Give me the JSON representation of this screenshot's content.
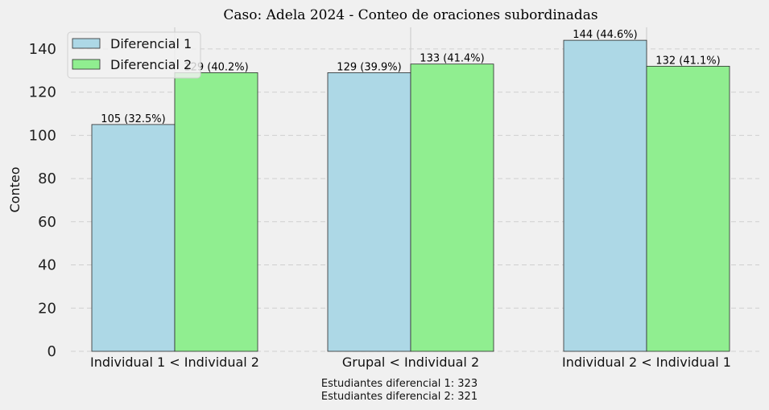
{
  "chart_data": {
    "type": "bar",
    "title": "Caso: Adela 2024 - Conteo de oraciones subordinadas",
    "xlabel": "",
    "ylabel": "Conteo",
    "ylim": [
      0,
      150
    ],
    "yticks": [
      0,
      20,
      40,
      60,
      80,
      100,
      120,
      140
    ],
    "grid": true,
    "legend_position": "top-left",
    "categories": [
      "Individual 1 < Individual 2",
      "Grupal < Individual 2",
      "Individual 2 < Individual 1"
    ],
    "series": [
      {
        "name": "Diferencial 1",
        "color": "#add8e6",
        "values": [
          105,
          129,
          144
        ],
        "labels": [
          "105 (32.5%)",
          "129 (39.9%)",
          "144 (44.6%)"
        ]
      },
      {
        "name": "Diferencial 2",
        "color": "#90ee90",
        "values": [
          129,
          133,
          132
        ],
        "labels": [
          "129 (40.2%)",
          "133 (41.4%)",
          "132 (41.1%)"
        ]
      }
    ],
    "annotations": [
      "Estudiantes diferencial 1: 323",
      "Estudiantes diferencial 2: 321"
    ]
  }
}
